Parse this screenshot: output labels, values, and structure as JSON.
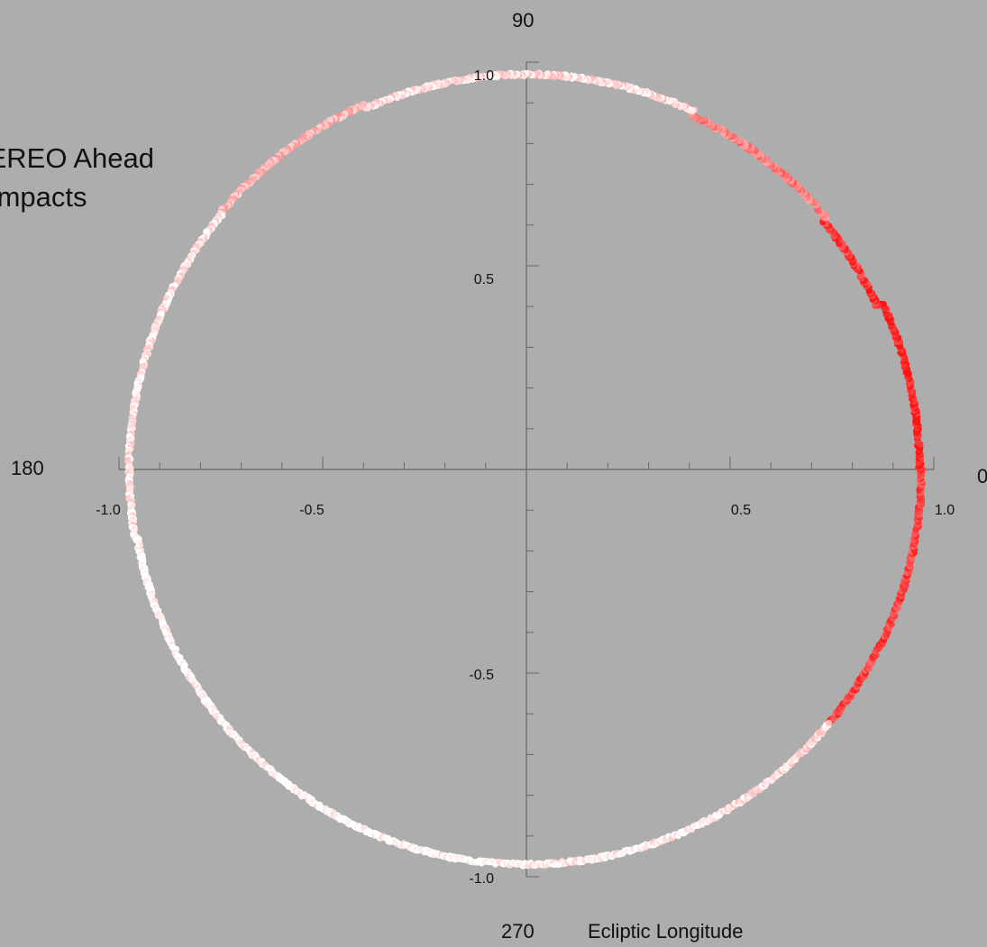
{
  "chart_data": {
    "type": "scatter",
    "title_lines": [
      "STEREO Ahead",
      "Impacts"
    ],
    "xlim": [
      -1.0,
      1.0
    ],
    "ylim": [
      -1.0,
      1.0
    ],
    "x_tick_labels": [
      "-1.0",
      "-0.5",
      "0.5",
      "1.0"
    ],
    "y_tick_labels": [
      "1.0",
      "0.5",
      "-0.5",
      "-1.0"
    ],
    "x_tick_values": [
      -1.0,
      -0.5,
      0.5,
      1.0
    ],
    "y_tick_values": [
      1.0,
      0.5,
      -0.5,
      -1.0
    ],
    "minor_tick_step": 0.1,
    "angle_labels": [
      {
        "text": "90",
        "angle_deg": 90
      },
      {
        "text": "180",
        "angle_deg": 180
      },
      {
        "text": "0",
        "angle_deg": 0
      },
      {
        "text": "270",
        "angle_deg": 270
      }
    ],
    "xlabel": "Ecliptic Longitude",
    "grid": false,
    "colormap": {
      "low": "#ffffff",
      "high": "#ff0000",
      "meaning": "impact intensity (0 = white, 1 = red)"
    },
    "series": [
      {
        "points_by_longitude": [
          {
            "lon_from": -40,
            "lon_to": 0,
            "radius": 0.97,
            "intensity": 0.8
          },
          {
            "lon_from": 0,
            "lon_to": 25,
            "radius": 0.965,
            "intensity": 0.95
          },
          {
            "lon_from": 25,
            "lon_to": 40,
            "radius": 0.95,
            "intensity": 0.85
          },
          {
            "lon_from": 40,
            "lon_to": 65,
            "radius": 0.96,
            "intensity": 0.55
          },
          {
            "lon_from": 65,
            "lon_to": 114,
            "radius": 0.97,
            "intensity": 0.15
          },
          {
            "lon_from": 114,
            "lon_to": 140,
            "radius": 0.98,
            "intensity": 0.3
          },
          {
            "lon_from": 140,
            "lon_to": 190,
            "radius": 0.975,
            "intensity": 0.1
          },
          {
            "lon_from": 190,
            "lon_to": 270,
            "radius": 0.97,
            "intensity": 0.0
          },
          {
            "lon_from": 270,
            "lon_to": 300,
            "radius": 0.97,
            "intensity": 0.05
          },
          {
            "lon_from": 300,
            "lon_to": 320,
            "radius": 0.97,
            "intensity": 0.15
          }
        ]
      }
    ]
  }
}
